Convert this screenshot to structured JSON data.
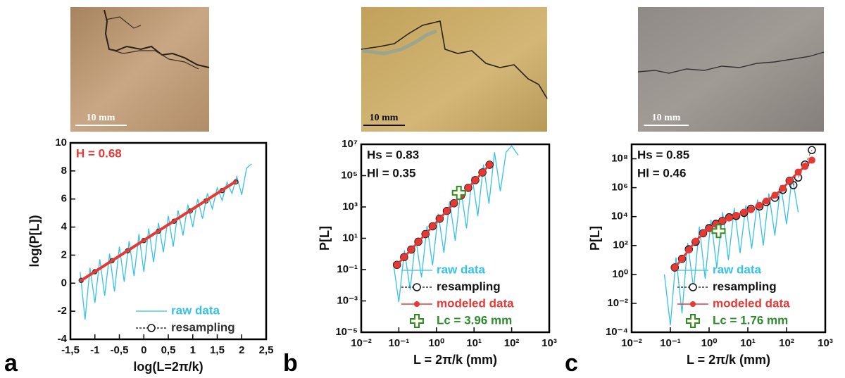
{
  "chart_data": [
    {
      "type": "line",
      "panel_label": "a",
      "scale_bar": "10 mm",
      "xlabel": "log(L=2π/k)",
      "ylabel": "log(P[L])",
      "xscale": "linear",
      "yscale": "linear",
      "xlim": [
        -1.5,
        2.5
      ],
      "ylim": [
        -4,
        10
      ],
      "xticks": [
        {
          "value": -1.5,
          "label": "-1,5"
        },
        -1,
        {
          "value": -0.5,
          "label": "-0,5"
        },
        0,
        {
          "value": 0.5,
          "label": "0,5"
        },
        1,
        {
          "value": 1.5,
          "label": "1,5"
        },
        2,
        {
          "value": 2.5,
          "label": "2,5"
        }
      ],
      "yticks": [
        -4,
        -2,
        0,
        2,
        4,
        6,
        8,
        10
      ],
      "annotations": [
        {
          "text": "H = 0.68",
          "color": "#e53935"
        }
      ],
      "legend": "lower right",
      "series": [
        {
          "name": "raw data",
          "color": "#35c2e6",
          "style": "line",
          "x": [
            -1.3,
            -1.2,
            -1.1,
            -1.0,
            -0.9,
            -0.8,
            -0.7,
            -0.6,
            -0.5,
            -0.4,
            -0.3,
            -0.2,
            -0.1,
            0,
            0.1,
            0.2,
            0.3,
            0.4,
            0.5,
            0.6,
            0.7,
            0.8,
            0.9,
            1.0,
            1.1,
            1.2,
            1.3,
            1.4,
            1.5,
            1.6,
            1.7,
            1.8,
            1.9,
            2.0,
            2.1,
            2.2
          ],
          "values": [
            0.8,
            -2.6,
            1.1,
            -1.4,
            1.7,
            -0.9,
            2.1,
            -0.6,
            2.6,
            0.1,
            3.0,
            0.5,
            3.5,
            0.8,
            3.9,
            1.5,
            4.3,
            2.2,
            4.8,
            2.6,
            5.2,
            3.4,
            5.6,
            4.0,
            6.0,
            4.6,
            6.4,
            5.3,
            6.8,
            5.9,
            7.2,
            6.4,
            7.6,
            6.3,
            8.2,
            8.5
          ]
        },
        {
          "name": "resampling",
          "color": "#333333",
          "style": "dashed-circles",
          "x": [
            -1.28,
            -1.0,
            -0.65,
            -0.33,
            0,
            0.3,
            0.62,
            0.95,
            1.27,
            1.6,
            1.88
          ],
          "values": [
            0.2,
            0.82,
            1.6,
            2.31,
            3.04,
            3.71,
            4.42,
            5.15,
            5.86,
            6.6,
            7.22
          ]
        },
        {
          "color": "#e53935",
          "style": "thick-line",
          "x": [
            -1.3,
            1.9
          ],
          "values": [
            0.15,
            7.3
          ]
        }
      ]
    },
    {
      "type": "line",
      "panel_label": "b",
      "scale_bar": "10 mm",
      "xlabel": "L = 2π/k (mm)",
      "ylabel": "P[L]",
      "xscale": "log",
      "yscale": "log",
      "xlim": [
        0.01,
        1000
      ],
      "ylim": [
        1e-05,
        10000000
      ],
      "xticks": [
        {
          "value": 0.01,
          "label": "10⁻²"
        },
        {
          "value": 0.1,
          "label": "10⁻¹"
        },
        {
          "value": 1,
          "label": "10⁰"
        },
        {
          "value": 10,
          "label": "10¹"
        },
        {
          "value": 100,
          "label": "10²"
        },
        {
          "value": 1000,
          "label": "10³"
        }
      ],
      "yticks": [
        {
          "value": 1e-05,
          "label": "10⁻⁵"
        },
        {
          "value": 0.001,
          "label": "10⁻³"
        },
        {
          "value": 0.1,
          "label": "10⁻¹"
        },
        {
          "value": 10,
          "label": "10¹"
        },
        {
          "value": 1000,
          "label": "10³"
        },
        {
          "value": 100000,
          "label": "10⁵"
        },
        {
          "value": 10000000,
          "label": "10⁷"
        }
      ],
      "annotations": [
        {
          "text": "Hs = 0.83",
          "color": "#111111"
        },
        {
          "text": "Hl = 0.35",
          "color": "#111111"
        }
      ],
      "legend": "lower right",
      "series": [
        {
          "name": "raw data",
          "color": "#35c2e6",
          "style": "line",
          "x": [
            0.071,
            0.1,
            0.141,
            0.2,
            0.28,
            0.4,
            0.56,
            0.79,
            1.12,
            1.58,
            2.24,
            3.16,
            4.47,
            6.3,
            8.9,
            12.6,
            17.8,
            25,
            35,
            50,
            71,
            100,
            150
          ],
          "values": [
            0.28,
            0.00085,
            1.7,
            0.0051,
            10,
            0.032,
            62,
            0.19,
            370,
            1.2,
            2300,
            7,
            14000,
            43,
            85000,
            260,
            510000,
            1600,
            3100000,
            10000,
            3200000,
            8000000,
            2000000
          ]
        },
        {
          "name": "resampling",
          "color": "#111111",
          "style": "dashed-circles",
          "x": [
            0.089,
            0.138,
            0.213,
            0.33,
            0.51,
            0.79,
            1.22,
            1.89,
            2.92,
            4.5,
            7.0,
            10.8,
            16.7,
            25.8
          ],
          "values": [
            0.2,
            0.62,
            1.9,
            6.0,
            18.5,
            58,
            179,
            555,
            1720,
            5350,
            16600,
            51500,
            160000,
            497000
          ]
        },
        {
          "name": "modeled data",
          "color": "#e53935",
          "style": "dots",
          "x": [
            0.089,
            0.138,
            0.213,
            0.33,
            0.51,
            0.79,
            1.22,
            1.89,
            2.92,
            4.5,
            7.0,
            10.8,
            16.7,
            25.8
          ],
          "values": [
            0.2,
            0.62,
            1.9,
            6.0,
            18.5,
            58,
            179,
            555,
            1720,
            5350,
            16600,
            51500,
            160000,
            497000
          ]
        },
        {
          "name": "Lc = 3.96 mm",
          "color": "#2e8b2e",
          "style": "cross",
          "x": [
            3.96
          ],
          "values": [
            8000
          ]
        }
      ]
    },
    {
      "type": "line",
      "panel_label": "c",
      "scale_bar": "10 mm",
      "xlabel": "L = 2π/k (mm)",
      "ylabel": "P[L]",
      "xscale": "log",
      "yscale": "log",
      "xlim": [
        0.01,
        1000
      ],
      "ylim": [
        0.0001,
        1000000000
      ],
      "xticks": [
        {
          "value": 0.01,
          "label": "10⁻²"
        },
        {
          "value": 0.1,
          "label": "10⁻¹"
        },
        {
          "value": 1,
          "label": "10⁰"
        },
        {
          "value": 10,
          "label": "10¹"
        },
        {
          "value": 100,
          "label": "10²"
        },
        {
          "value": 1000,
          "label": "10³"
        }
      ],
      "yticks": [
        {
          "value": 0.0001,
          "label": "10⁻⁴"
        },
        {
          "value": 0.01,
          "label": "10⁻²"
        },
        {
          "value": 1,
          "label": "10⁰"
        },
        {
          "value": 100,
          "label": "10²"
        },
        {
          "value": 10000,
          "label": "10⁴"
        },
        {
          "value": 1000000,
          "label": "10⁶"
        },
        {
          "value": 100000000,
          "label": "10⁸"
        }
      ],
      "annotations": [
        {
          "text": "Hs = 0.85",
          "color": "#111111"
        },
        {
          "text": "Hl = 0.46",
          "color": "#111111"
        }
      ],
      "legend": "lower right",
      "series": [
        {
          "name": "raw data",
          "color": "#35c2e6",
          "style": "line",
          "x": [
            0.07,
            0.1,
            0.14,
            0.2,
            0.28,
            0.4,
            0.56,
            0.79,
            1.12,
            1.58,
            2.24,
            3.16,
            4.47,
            6.3,
            8.9,
            12.6,
            17.8,
            25,
            35,
            50,
            71,
            100,
            140,
            200
          ],
          "values": [
            1,
            0.0003,
            15,
            0.002,
            150,
            0.1,
            2000,
            0.5,
            6000,
            3,
            20000,
            10,
            40000,
            30,
            60000,
            60,
            150000,
            100,
            400000,
            500,
            1500000,
            3000,
            6000000,
            20000
          ]
        },
        {
          "name": "resampling",
          "color": "#111111",
          "style": "dashed-circles",
          "x": [
            0.13,
            0.2,
            0.3,
            0.45,
            0.7,
            1.0,
            1.5,
            2.2,
            3.3,
            5,
            8,
            12,
            20,
            30,
            50,
            80,
            120,
            150,
            200,
            300,
            450
          ],
          "values": [
            3,
            12,
            55,
            180,
            700,
            1600,
            3200,
            5000,
            9000,
            11000,
            18000,
            35000,
            50000,
            100000,
            200000,
            700000,
            3000000,
            1500000,
            5000000,
            40000000,
            400000000
          ]
        },
        {
          "name": "modeled data",
          "color": "#e53935",
          "style": "dots",
          "x": [
            0.13,
            0.2,
            0.3,
            0.45,
            0.7,
            1.0,
            1.5,
            2.2,
            3.3,
            5,
            8,
            12,
            20,
            30,
            50,
            80,
            120,
            200,
            300,
            450
          ],
          "values": [
            3,
            12,
            50,
            200,
            700,
            1500,
            3000,
            5000,
            8000,
            12000,
            20000,
            30000,
            60000,
            120000,
            300000,
            900000,
            3000000,
            12000000,
            30000000,
            80000000
          ]
        },
        {
          "name": "Lc = 1.76 mm",
          "color": "#2e8b2e",
          "style": "cross",
          "x": [
            1.76
          ],
          "values": [
            1000
          ]
        }
      ]
    }
  ]
}
